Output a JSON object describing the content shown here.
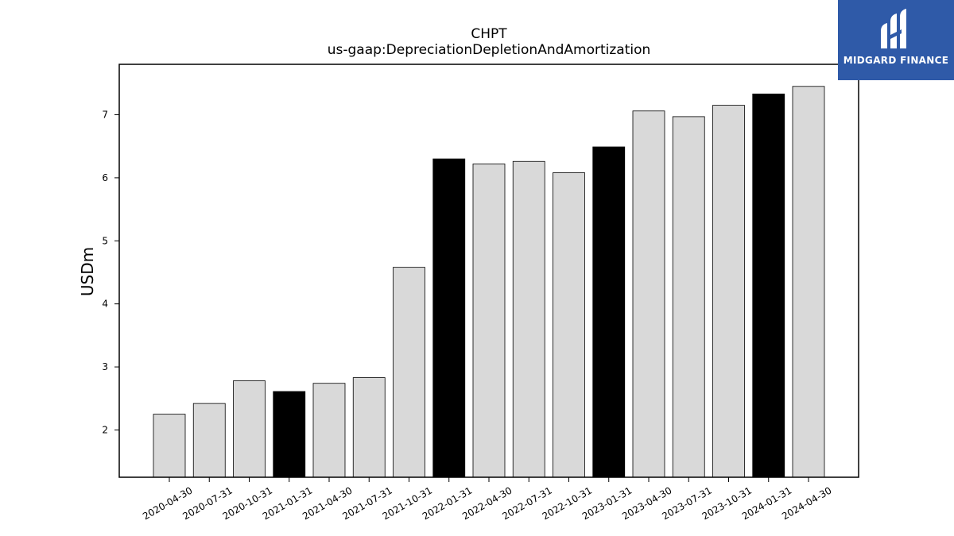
{
  "brand": {
    "name": "MIDGARD FINANCE",
    "color": "#2f5aa8",
    "icon": "midgard-logo-icon"
  },
  "chart_data": {
    "type": "bar",
    "title": "CHPT",
    "subtitle": "us-gaap:DepreciationDepletionAndAmortization",
    "xlabel": "",
    "ylabel": "USDm",
    "categories": [
      "2020-04-30",
      "2020-07-31",
      "2020-10-31",
      "2021-01-31",
      "2021-04-30",
      "2021-07-31",
      "2021-10-31",
      "2022-01-31",
      "2022-04-30",
      "2022-07-31",
      "2022-10-31",
      "2023-01-31",
      "2023-04-30",
      "2023-07-31",
      "2023-10-31",
      "2024-01-31",
      "2024-04-30"
    ],
    "values": [
      2.25,
      2.42,
      2.78,
      2.61,
      2.74,
      2.83,
      4.58,
      6.3,
      6.22,
      6.26,
      6.08,
      6.49,
      7.06,
      6.97,
      7.15,
      7.33,
      7.45
    ],
    "highlighted": [
      false,
      false,
      false,
      true,
      false,
      false,
      false,
      true,
      false,
      false,
      false,
      true,
      false,
      false,
      false,
      true,
      false
    ],
    "highlight_meaning": "fiscal year end (January 31)",
    "colors": {
      "default": "#d9d9d9",
      "highlight": "#000000",
      "edge": "#000000"
    },
    "ylim": [
      1.25,
      7.8
    ],
    "yticks": [
      2,
      3,
      4,
      5,
      6,
      7
    ],
    "grid": false,
    "legend": "none"
  }
}
